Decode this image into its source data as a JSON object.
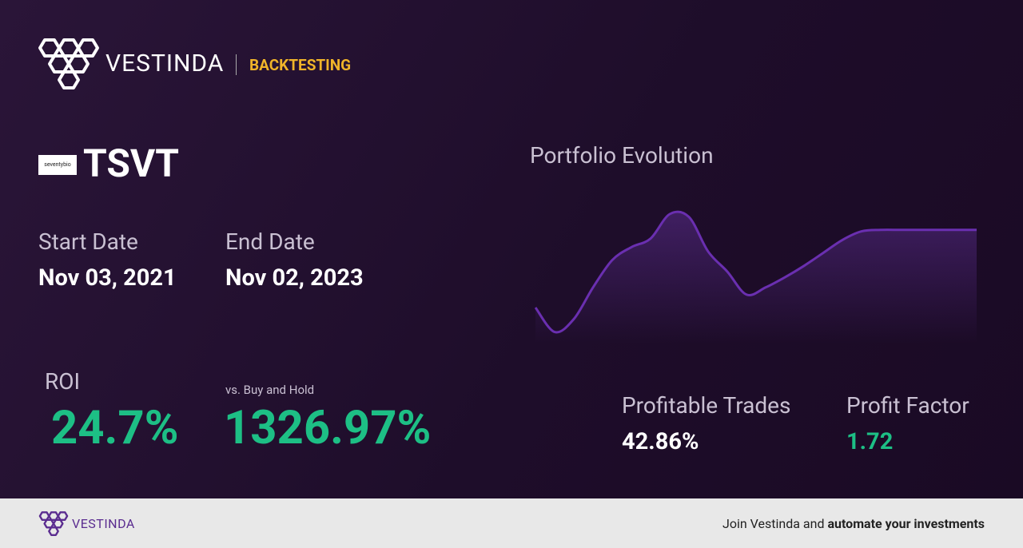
{
  "header": {
    "brand": "VESTINDA",
    "section": "BACKTESTING"
  },
  "asset": {
    "logo_text": "seventybio",
    "ticker": "TSVT"
  },
  "dates": {
    "start_label": "Start Date",
    "start": "Nov 03, 2021",
    "end_label": "End Date",
    "end": "Nov 02, 2023"
  },
  "metrics": {
    "roi_label": "ROI",
    "roi": "24.7%",
    "buy_hold_label": "vs. Buy and Hold",
    "buy_hold": "1326.97%",
    "profitable_trades_label": "Profitable Trades",
    "profitable_trades": "42.86%",
    "profit_factor_label": "Profit Factor",
    "profit_factor": "1.72"
  },
  "chart_data": {
    "type": "line",
    "title": "Portfolio Evolution",
    "color": "#6a2fb0",
    "values": [
      25,
      8,
      17,
      39,
      58,
      67,
      73,
      90,
      88,
      64,
      50,
      34,
      39,
      46,
      54,
      63,
      72,
      78,
      79,
      79,
      79,
      79,
      79,
      79
    ],
    "ylim": [
      0,
      100
    ]
  },
  "footer": {
    "brand": "VESTINDA",
    "cta_prefix": "Join Vestinda and",
    "cta_bold": "automate your investments"
  }
}
